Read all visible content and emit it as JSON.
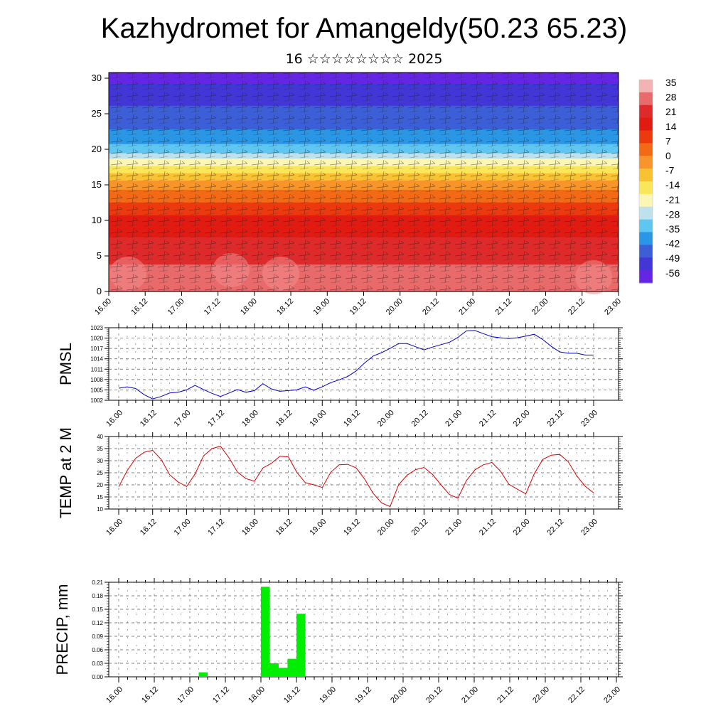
{
  "title": "Kazhydromet for Amangeldy(50.23 65.23)",
  "subtitle": "16 ☆☆☆☆☆☆☆☆ 2025",
  "colors": {
    "pmsl_line": "#0000cc",
    "temp_line": "#dd0000",
    "precip_bar": "#00ee00",
    "grid": "#555555"
  },
  "chart_data": [
    {
      "type": "heatmap",
      "name": "vertical-cross-section",
      "x_tick_labels": [
        "16.00",
        "16.12",
        "17.00",
        "17.12",
        "18.00",
        "18.12",
        "19.00",
        "19.12",
        "20.00",
        "20.12",
        "21.00",
        "21.12",
        "22.00",
        "22.12",
        "23.00"
      ],
      "y_ticks": [
        0,
        5,
        10,
        15,
        20,
        25,
        30
      ],
      "ylim": [
        0,
        30.8
      ],
      "colorbar_labels": [
        "35",
        "28",
        "21",
        "14",
        "7",
        "0",
        "-7",
        "-14",
        "-21",
        "-28",
        "-35",
        "-42",
        "-49",
        "-56"
      ],
      "colorbar_colors": [
        "#f4b3b3",
        "#e86a6a",
        "#de2a2a",
        "#e21b12",
        "#ec3a0e",
        "#f36a16",
        "#f7952a",
        "#f9c232",
        "#fae65a",
        "#fbf6b6",
        "#bde2ee",
        "#5ec6f0",
        "#2a96e6",
        "#3c5fd8",
        "#4236d6",
        "#6426e4"
      ],
      "temperature_profile": [
        {
          "height": 0,
          "temp": 30
        },
        {
          "height": 5,
          "temp": 24
        },
        {
          "height": 10,
          "temp": 15
        },
        {
          "height": 15,
          "temp": -2
        },
        {
          "height": 18,
          "temp": -20
        },
        {
          "height": 20,
          "temp": -35
        },
        {
          "height": 23,
          "temp": -45
        },
        {
          "height": 27,
          "temp": -52
        },
        {
          "height": 30,
          "temp": -58
        }
      ]
    },
    {
      "type": "line",
      "name": "pmsl",
      "ylabel": "PMSL",
      "x_tick_labels": [
        "16.00",
        "16.12",
        "17.00",
        "17.12",
        "18.00",
        "18.12",
        "19.00",
        "19.12",
        "20.00",
        "20.12",
        "21.00",
        "21.12",
        "22.00",
        "22.12",
        "23.00"
      ],
      "y_ticks": [
        1002,
        1005,
        1008,
        1011,
        1014,
        1017,
        1020,
        1023
      ],
      "ylim": [
        1002,
        1023
      ],
      "x": [
        0,
        3,
        6,
        9,
        12,
        15,
        18,
        21,
        24,
        27,
        30,
        33,
        36,
        39,
        42,
        45,
        48,
        51,
        54,
        57,
        60,
        63,
        66,
        69,
        72,
        75,
        78,
        81,
        84,
        87,
        90,
        93,
        96,
        99,
        102,
        105,
        108,
        111,
        114,
        117,
        120,
        123,
        126,
        129,
        132,
        135,
        138,
        141,
        144,
        147,
        150,
        153,
        156,
        159,
        162,
        165,
        168
      ],
      "values": [
        1005.5,
        1005.9,
        1005.4,
        1003.6,
        1002.4,
        1003.1,
        1004.1,
        1004.3,
        1005.0,
        1006.3,
        1005.1,
        1004.0,
        1003.1,
        1004.1,
        1005.1,
        1004.3,
        1004.8,
        1006.8,
        1005.3,
        1004.6,
        1004.8,
        1005.0,
        1005.9,
        1004.9,
        1005.9,
        1007.1,
        1007.9,
        1008.9,
        1010.5,
        1012.8,
        1014.8,
        1015.8,
        1017.0,
        1018.4,
        1018.4,
        1017.5,
        1016.6,
        1017.4,
        1018.1,
        1018.8,
        1020.2,
        1022.1,
        1022.2,
        1021.3,
        1020.4,
        1020.1,
        1019.9,
        1020.1,
        1020.6,
        1021.1,
        1019.6,
        1017.6,
        1016.0,
        1015.6,
        1015.6,
        1015.1,
        1015.1
      ]
    },
    {
      "type": "line",
      "name": "temp-2m",
      "ylabel": "TEMP at 2 M",
      "x_tick_labels": [
        "16.00",
        "16.12",
        "17.00",
        "17.12",
        "18.00",
        "18.12",
        "19.00",
        "19.12",
        "20.00",
        "20.12",
        "21.00",
        "21.12",
        "22.00",
        "22.12",
        "23.00"
      ],
      "y_ticks": [
        10,
        15,
        20,
        25,
        30,
        35,
        40
      ],
      "ylim": [
        10,
        40
      ],
      "x": [
        0,
        3,
        6,
        9,
        12,
        15,
        18,
        21,
        24,
        27,
        30,
        33,
        36,
        39,
        42,
        45,
        48,
        51,
        54,
        57,
        60,
        63,
        66,
        69,
        72,
        75,
        78,
        81,
        84,
        87,
        90,
        93,
        96,
        99,
        102,
        105,
        108,
        111,
        114,
        117,
        120,
        123,
        126,
        129,
        132,
        135,
        138,
        141,
        144,
        147,
        150,
        153,
        156,
        159,
        162,
        165,
        168
      ],
      "values": [
        19.2,
        25.9,
        31.0,
        33.5,
        34.3,
        30.6,
        24.2,
        21.2,
        19.3,
        24.5,
        32.0,
        35.0,
        36.0,
        31.2,
        25.3,
        22.6,
        21.5,
        27.0,
        28.9,
        31.8,
        31.6,
        25.2,
        20.9,
        20.0,
        18.9,
        25.2,
        28.3,
        28.5,
        27.0,
        22.4,
        16.5,
        12.5,
        11.0,
        20.0,
        24.0,
        26.3,
        27.2,
        24.3,
        20.0,
        16.0,
        14.5,
        21.8,
        26.2,
        28.3,
        29.3,
        25.7,
        20.3,
        18.2,
        16.3,
        24.6,
        30.5,
        32.3,
        32.6,
        29.6,
        23.8,
        19.4,
        16.7
      ]
    },
    {
      "type": "bar",
      "name": "precip",
      "ylabel": "PRECIP, mm",
      "x_tick_labels": [
        "16.00",
        "16.12",
        "17.00",
        "17.12",
        "18.00",
        "18.12",
        "19.00",
        "19.12",
        "20.00",
        "20.12",
        "21.00",
        "21.12",
        "22.00",
        "22.12",
        "23.00"
      ],
      "y_ticks": [
        "0.00",
        "0.03",
        "0.06",
        "0.09",
        "0.12",
        "0.15",
        "0.18",
        "0.21"
      ],
      "ylim": [
        0,
        0.21
      ],
      "bars": [
        {
          "x": 27,
          "value": 0.01
        },
        {
          "x": 48,
          "value": 0.2
        },
        {
          "x": 51,
          "value": 0.03
        },
        {
          "x": 54,
          "value": 0.02
        },
        {
          "x": 57,
          "value": 0.04
        },
        {
          "x": 60,
          "value": 0.14
        }
      ]
    }
  ]
}
